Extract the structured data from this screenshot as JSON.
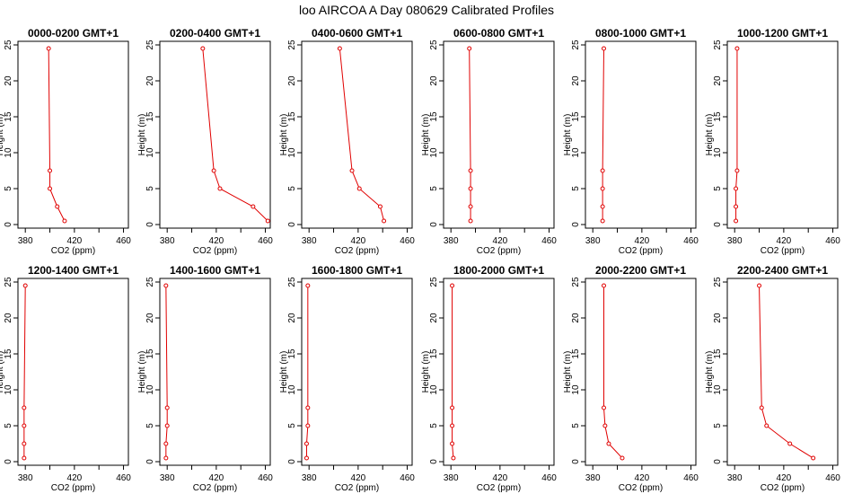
{
  "figure": {
    "title": "loo AIRCOA A  Day 080629  Calibrated Profiles"
  },
  "chart_data": [
    {
      "type": "line",
      "title": "0000-0200 GMT+1",
      "xlabel": "CO2 (ppm)",
      "ylabel": "Height (m)",
      "xlim": [
        374,
        464
      ],
      "ylim": [
        -0.5,
        25.5
      ],
      "xticks": [
        380,
        420,
        460
      ],
      "xticks_minor": [
        400,
        440
      ],
      "yticks": [
        0,
        5,
        10,
        15,
        20,
        25
      ],
      "series": [
        {
          "x": [
            412,
            406,
            400,
            400,
            399
          ],
          "y": [
            0.5,
            2.5,
            5,
            7.5,
            24.5
          ]
        }
      ]
    },
    {
      "type": "line",
      "title": "0200-0400 GMT+1",
      "xlabel": "CO2 (ppm)",
      "ylabel": "Height (m)",
      "xlim": [
        374,
        464
      ],
      "ylim": [
        -0.5,
        25.5
      ],
      "xticks": [
        380,
        420,
        460
      ],
      "xticks_minor": [
        400,
        440
      ],
      "yticks": [
        0,
        5,
        10,
        15,
        20,
        25
      ],
      "series": [
        {
          "x": [
            462,
            450,
            423,
            418,
            409
          ],
          "y": [
            0.5,
            2.5,
            5,
            7.5,
            24.5
          ]
        }
      ]
    },
    {
      "type": "line",
      "title": "0400-0600 GMT+1",
      "xlabel": "CO2 (ppm)",
      "ylabel": "Height (m)",
      "xlim": [
        374,
        464
      ],
      "ylim": [
        -0.5,
        25.5
      ],
      "xticks": [
        380,
        420,
        460
      ],
      "xticks_minor": [
        400,
        440
      ],
      "yticks": [
        0,
        5,
        10,
        15,
        20,
        25
      ],
      "series": [
        {
          "x": [
            441,
            438,
            421,
            415,
            405
          ],
          "y": [
            0.5,
            2.5,
            5,
            7.5,
            24.5
          ]
        }
      ]
    },
    {
      "type": "line",
      "title": "0600-0800 GMT+1",
      "xlabel": "CO2 (ppm)",
      "ylabel": "Height (m)",
      "xlim": [
        374,
        464
      ],
      "ylim": [
        -0.5,
        25.5
      ],
      "xticks": [
        380,
        420,
        460
      ],
      "xticks_minor": [
        400,
        440
      ],
      "yticks": [
        0,
        5,
        10,
        15,
        20,
        25
      ],
      "series": [
        {
          "x": [
            396,
            396,
            396,
            396,
            395
          ],
          "y": [
            0.5,
            2.5,
            5,
            7.5,
            24.5
          ]
        }
      ]
    },
    {
      "type": "line",
      "title": "0800-1000 GMT+1",
      "xlabel": "CO2 (ppm)",
      "ylabel": "Height (m)",
      "xlim": [
        374,
        464
      ],
      "ylim": [
        -0.5,
        25.5
      ],
      "xticks": [
        380,
        420,
        460
      ],
      "xticks_minor": [
        400,
        440
      ],
      "yticks": [
        0,
        5,
        10,
        15,
        20,
        25
      ],
      "series": [
        {
          "x": [
            388,
            388,
            388,
            388,
            389
          ],
          "y": [
            0.5,
            2.5,
            5,
            7.5,
            24.5
          ]
        }
      ]
    },
    {
      "type": "line",
      "title": "1000-1200 GMT+1",
      "xlabel": "CO2 (ppm)",
      "ylabel": "Height (m)",
      "xlim": [
        374,
        464
      ],
      "ylim": [
        -0.5,
        25.5
      ],
      "xticks": [
        380,
        420,
        460
      ],
      "xticks_minor": [
        400,
        440
      ],
      "yticks": [
        0,
        5,
        10,
        15,
        20,
        25
      ],
      "series": [
        {
          "x": [
            381,
            381,
            381,
            382,
            382
          ],
          "y": [
            0.5,
            2.5,
            5,
            7.5,
            24.5
          ]
        }
      ]
    },
    {
      "type": "line",
      "title": "1200-1400 GMT+1",
      "xlabel": "CO2 (ppm)",
      "ylabel": "Height (m)",
      "xlim": [
        374,
        464
      ],
      "ylim": [
        -0.5,
        25.5
      ],
      "xticks": [
        380,
        420,
        460
      ],
      "xticks_minor": [
        400,
        440
      ],
      "yticks": [
        0,
        5,
        10,
        15,
        20,
        25
      ],
      "series": [
        {
          "x": [
            379,
            379,
            379,
            379,
            380
          ],
          "y": [
            0.5,
            2.5,
            5,
            7.5,
            24.5
          ]
        }
      ]
    },
    {
      "type": "line",
      "title": "1400-1600 GMT+1",
      "xlabel": "CO2 (ppm)",
      "ylabel": "Height (m)",
      "xlim": [
        374,
        464
      ],
      "ylim": [
        -0.5,
        25.5
      ],
      "xticks": [
        380,
        420,
        460
      ],
      "xticks_minor": [
        400,
        440
      ],
      "yticks": [
        0,
        5,
        10,
        15,
        20,
        25
      ],
      "series": [
        {
          "x": [
            379,
            379,
            380,
            380,
            379
          ],
          "y": [
            0.5,
            2.5,
            5,
            7.5,
            24.5
          ]
        }
      ]
    },
    {
      "type": "line",
      "title": "1600-1800 GMT+1",
      "xlabel": "CO2 (ppm)",
      "ylabel": "Height (m)",
      "xlim": [
        374,
        464
      ],
      "ylim": [
        -0.5,
        25.5
      ],
      "xticks": [
        380,
        420,
        460
      ],
      "xticks_minor": [
        400,
        440
      ],
      "yticks": [
        0,
        5,
        10,
        15,
        20,
        25
      ],
      "series": [
        {
          "x": [
            378,
            378,
            379,
            379,
            379
          ],
          "y": [
            0.5,
            2.5,
            5,
            7.5,
            24.5
          ]
        }
      ]
    },
    {
      "type": "line",
      "title": "1800-2000 GMT+1",
      "xlabel": "CO2 (ppm)",
      "ylabel": "Height (m)",
      "xlim": [
        374,
        464
      ],
      "ylim": [
        -0.5,
        25.5
      ],
      "xticks": [
        380,
        420,
        460
      ],
      "xticks_minor": [
        400,
        440
      ],
      "yticks": [
        0,
        5,
        10,
        15,
        20,
        25
      ],
      "series": [
        {
          "x": [
            382,
            381,
            381,
            381,
            381
          ],
          "y": [
            0.5,
            2.5,
            5,
            7.5,
            24.5
          ]
        }
      ]
    },
    {
      "type": "line",
      "title": "2000-2200 GMT+1",
      "xlabel": "CO2 (ppm)",
      "ylabel": "Height (m)",
      "xlim": [
        374,
        464
      ],
      "ylim": [
        -0.5,
        25.5
      ],
      "xticks": [
        380,
        420,
        460
      ],
      "xticks_minor": [
        400,
        440
      ],
      "yticks": [
        0,
        5,
        10,
        15,
        20,
        25
      ],
      "series": [
        {
          "x": [
            404,
            393,
            390,
            389,
            389
          ],
          "y": [
            0.5,
            2.5,
            5,
            7.5,
            24.5
          ]
        }
      ]
    },
    {
      "type": "line",
      "title": "2200-2400 GMT+1",
      "xlabel": "CO2 (ppm)",
      "ylabel": "Height (m)",
      "xlim": [
        374,
        464
      ],
      "ylim": [
        -0.5,
        25.5
      ],
      "xticks": [
        380,
        420,
        460
      ],
      "xticks_minor": [
        400,
        440
      ],
      "yticks": [
        0,
        5,
        10,
        15,
        20,
        25
      ],
      "series": [
        {
          "x": [
            444,
            425,
            406,
            402,
            400
          ],
          "y": [
            0.5,
            2.5,
            5,
            7.5,
            24.5
          ]
        }
      ]
    }
  ]
}
